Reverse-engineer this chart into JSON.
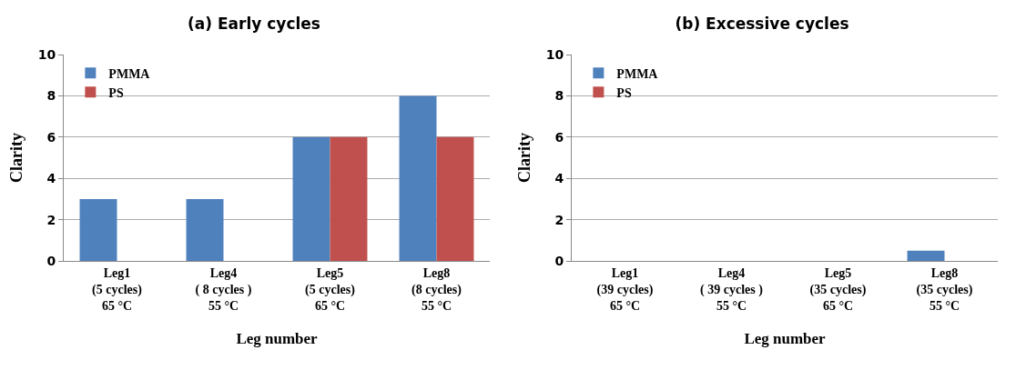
{
  "chart_data": [
    {
      "type": "bar",
      "title": "(a) Early cycles",
      "xlabel": "Leg number",
      "ylabel": "Clarity",
      "categories": [
        "Leg1\n(5 cycles)\n65 °C",
        "Leg4\n( 8 cycles )\n55 °C",
        "Leg5\n(5 cycles)\n65 °C",
        "Leg8\n(8 cycles)\n55 °C"
      ],
      "series": [
        {
          "name": "PMMA",
          "color": "#4f81bd",
          "values": [
            3,
            3,
            6,
            8
          ]
        },
        {
          "name": "PS",
          "color": "#c0504d",
          "values": [
            0,
            0,
            6,
            6
          ]
        }
      ],
      "ylim": [
        0,
        10
      ],
      "yticks": [
        0,
        2,
        4,
        6,
        8,
        10
      ],
      "grid": "y",
      "legend": "top left"
    },
    {
      "type": "bar",
      "title": "(b) Excessive cycles",
      "xlabel": "Leg number",
      "ylabel": "Clarity",
      "categories": [
        "Leg1\n(39 cycles)\n65 °C",
        "Leg4\n( 39 cycles )\n55 °C",
        "Leg5\n(35 cycles)\n65 °C",
        "Leg8\n(35 cycles)\n55 °C"
      ],
      "series": [
        {
          "name": "PMMA",
          "color": "#4f81bd",
          "values": [
            0,
            0,
            0,
            0.5
          ]
        },
        {
          "name": "PS",
          "color": "#c0504d",
          "values": [
            0,
            0,
            0,
            0
          ]
        }
      ],
      "ylim": [
        0,
        10
      ],
      "yticks": [
        0,
        2,
        4,
        6,
        8,
        10
      ],
      "grid": "y",
      "legend": "top left"
    }
  ]
}
